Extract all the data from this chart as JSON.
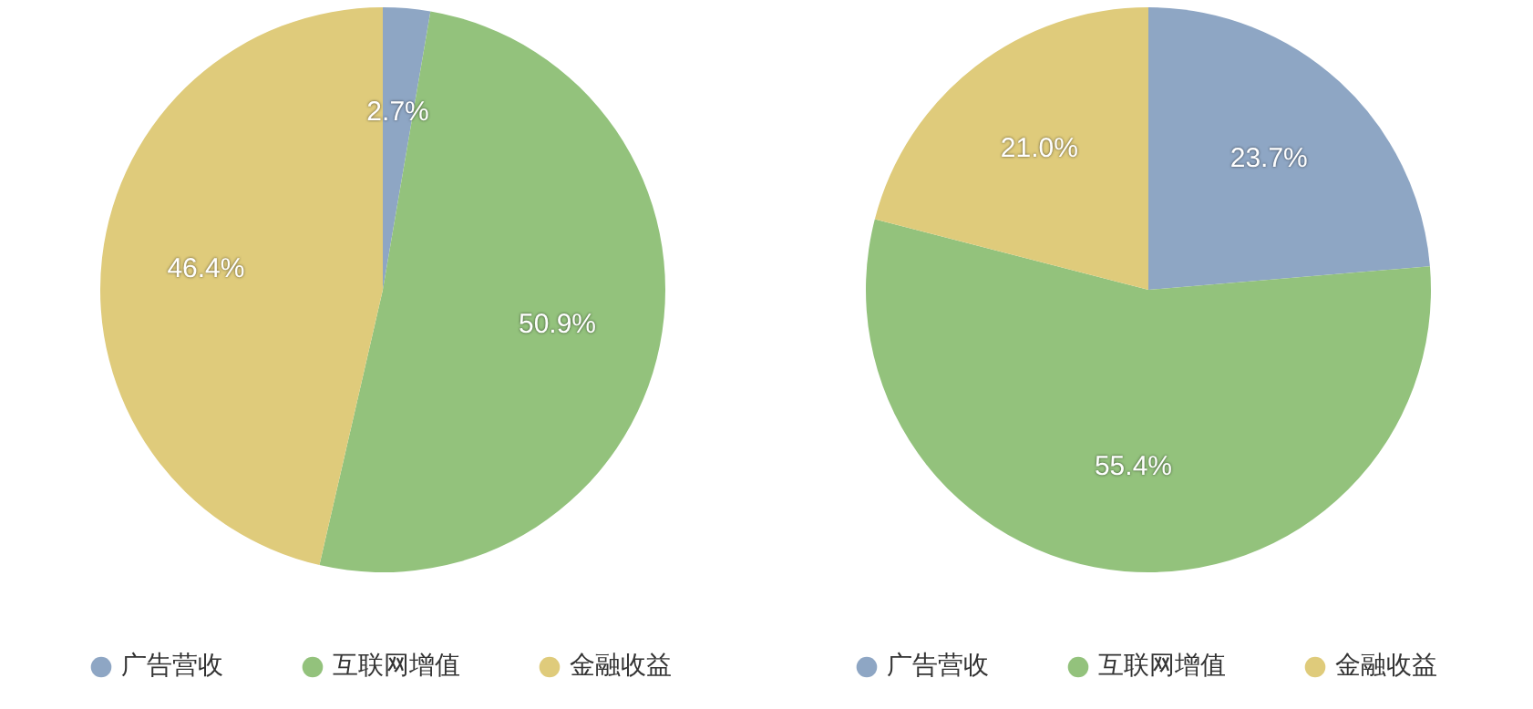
{
  "chart_data": [
    {
      "type": "pie",
      "categories": [
        "广告营收",
        "互联网增值",
        "金融收益"
      ],
      "values": [
        2.7,
        50.9,
        46.4
      ],
      "colors": [
        "#8ea6c4",
        "#93c27c",
        "#dfcb7b"
      ],
      "value_labels": [
        "2.7%",
        "50.9%",
        "46.4%"
      ],
      "legend": "bottom"
    },
    {
      "type": "pie",
      "categories": [
        "广告营收",
        "互联网增值",
        "金融收益"
      ],
      "values": [
        23.7,
        55.4,
        21.0
      ],
      "colors": [
        "#8ea6c4",
        "#93c27c",
        "#dfcb7b"
      ],
      "value_labels": [
        "23.7%",
        "55.4%",
        "21.0%"
      ],
      "legend": "bottom"
    }
  ]
}
